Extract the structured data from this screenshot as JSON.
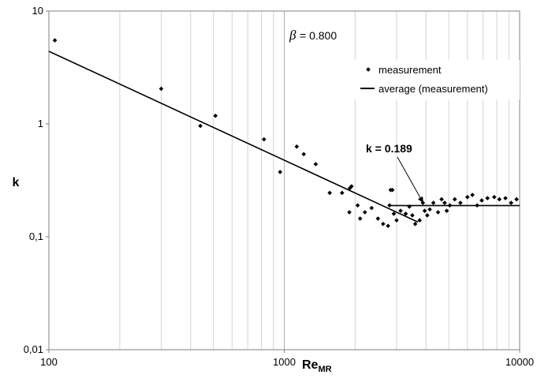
{
  "chart_data": {
    "type": "scatter",
    "x_scale": "log",
    "y_scale": "log",
    "xlim": [
      100,
      10000
    ],
    "ylim": [
      0.01,
      10
    ],
    "x_tick_labels": [
      "100",
      "1000",
      "10000"
    ],
    "y_tick_labels": [
      "10",
      "1",
      "0,1",
      "0,01"
    ],
    "xlabel_main": "Re",
    "xlabel_sub": "MR",
    "ylabel": "k",
    "grid": "vertical minor lines",
    "legend_position": "top-right",
    "legend_labels": [
      "measurement",
      "average (measurement)"
    ],
    "beta_symbol": "β",
    "beta_value": "= 0.800",
    "annotation": "k = 0.189",
    "annotation_target": [
      3900,
      0.189
    ],
    "series": [
      {
        "name": "measurement",
        "kind": "points",
        "x": [
          106,
          300,
          440,
          510,
          820,
          960,
          1130,
          1210,
          1360,
          1560,
          1760,
          1900,
          1930,
          1890,
          2050,
          2100,
          2200,
          2350,
          2500,
          2630,
          2760,
          2800,
          2830,
          2880,
          2920,
          3000,
          3120,
          3280,
          3400,
          3500,
          3600,
          3760,
          3880,
          3950,
          4050,
          4150,
          4300,
          4500,
          4660,
          4800,
          4900,
          5050,
          5300,
          5600,
          6000,
          6300,
          6600,
          6900,
          7300,
          7800,
          8200,
          8700,
          9200,
          9700
        ],
        "y": [
          5.5,
          2.05,
          0.96,
          1.18,
          0.73,
          0.375,
          0.63,
          0.54,
          0.44,
          0.245,
          0.245,
          0.27,
          0.28,
          0.165,
          0.19,
          0.145,
          0.165,
          0.18,
          0.145,
          0.13,
          0.125,
          0.19,
          0.26,
          0.26,
          0.16,
          0.14,
          0.17,
          0.16,
          0.185,
          0.155,
          0.13,
          0.14,
          0.2,
          0.17,
          0.155,
          0.175,
          0.2,
          0.165,
          0.215,
          0.2,
          0.17,
          0.19,
          0.215,
          0.2,
          0.225,
          0.235,
          0.19,
          0.21,
          0.22,
          0.225,
          0.215,
          0.22,
          0.2,
          0.215
        ]
      },
      {
        "name": "average (measurement)",
        "kind": "line",
        "segments": [
          {
            "x": [
              100,
              3700
            ],
            "y": [
              4.4,
              0.135
            ]
          },
          {
            "x": [
              2800,
              10000
            ],
            "y": [
              0.189,
              0.189
            ]
          }
        ]
      }
    ]
  }
}
